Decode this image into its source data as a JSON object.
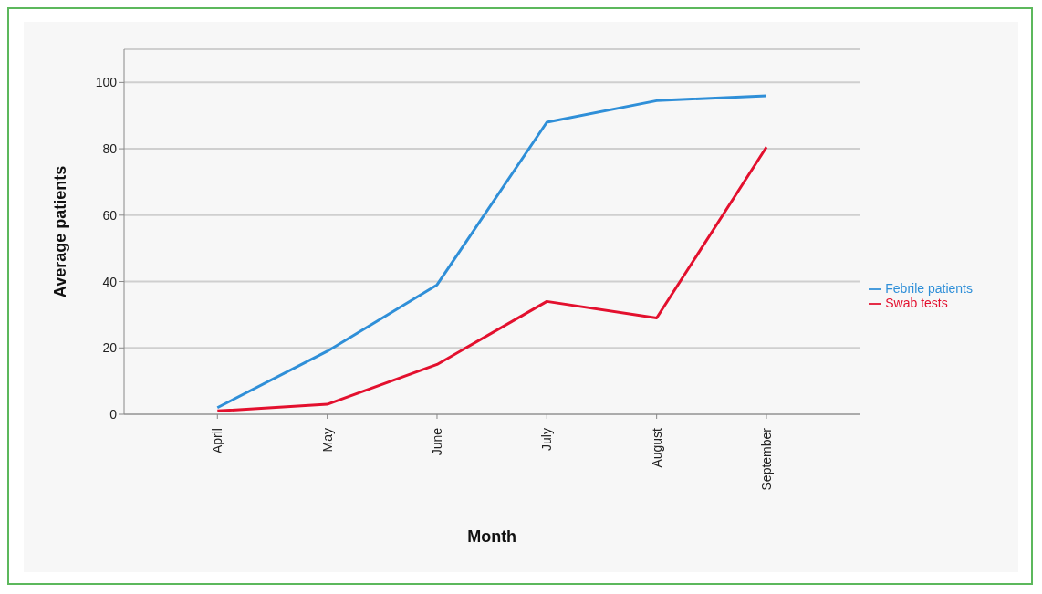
{
  "chart_data": {
    "type": "line",
    "xlabel": "Month",
    "ylabel": "Average patients",
    "categories": [
      "April",
      "May",
      "June",
      "July",
      "August",
      "September"
    ],
    "series": [
      {
        "name": "Febrile patients",
        "color": "#2f8fd8",
        "values": [
          2,
          19,
          39,
          88,
          94.5,
          96
        ]
      },
      {
        "name": "Swab tests",
        "color": "#e3102e",
        "values": [
          1,
          3,
          15,
          34,
          29,
          80.5
        ]
      }
    ],
    "ylim": [
      0,
      110
    ],
    "yticks": [
      0,
      20,
      40,
      60,
      80,
      100
    ],
    "grid": "y",
    "legend": "right",
    "marker": "none",
    "line_style": "solid"
  }
}
